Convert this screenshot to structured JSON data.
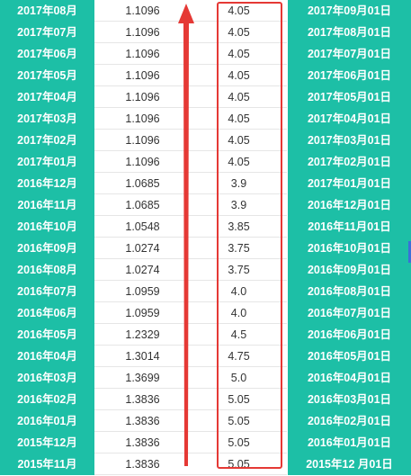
{
  "rows": [
    {
      "period": "2017年08月",
      "rate": "1.1096",
      "value": "4.05",
      "date": "2017年09月01日"
    },
    {
      "period": "2017年07月",
      "rate": "1.1096",
      "value": "4.05",
      "date": "2017年08月01日"
    },
    {
      "period": "2017年06月",
      "rate": "1.1096",
      "value": "4.05",
      "date": "2017年07月01日"
    },
    {
      "period": "2017年05月",
      "rate": "1.1096",
      "value": "4.05",
      "date": "2017年06月01日"
    },
    {
      "period": "2017年04月",
      "rate": "1.1096",
      "value": "4.05",
      "date": "2017年05月01日"
    },
    {
      "period": "2017年03月",
      "rate": "1.1096",
      "value": "4.05",
      "date": "2017年04月01日"
    },
    {
      "period": "2017年02月",
      "rate": "1.1096",
      "value": "4.05",
      "date": "2017年03月01日"
    },
    {
      "period": "2017年01月",
      "rate": "1.1096",
      "value": "4.05",
      "date": "2017年02月01日"
    },
    {
      "period": "2016年12月",
      "rate": "1.0685",
      "value": "3.9",
      "date": "2017年01月01日"
    },
    {
      "period": "2016年11月",
      "rate": "1.0685",
      "value": "3.9",
      "date": "2016年12月01日"
    },
    {
      "period": "2016年10月",
      "rate": "1.0548",
      "value": "3.85",
      "date": "2016年11月01日"
    },
    {
      "period": "2016年09月",
      "rate": "1.0274",
      "value": "3.75",
      "date": "2016年10月01日"
    },
    {
      "period": "2016年08月",
      "rate": "1.0274",
      "value": "3.75",
      "date": "2016年09月01日"
    },
    {
      "period": "2016年07月",
      "rate": "1.0959",
      "value": "4.0",
      "date": "2016年08月01日"
    },
    {
      "period": "2016年06月",
      "rate": "1.0959",
      "value": "4.0",
      "date": "2016年07月01日"
    },
    {
      "period": "2016年05月",
      "rate": "1.2329",
      "value": "4.5",
      "date": "2016年06月01日"
    },
    {
      "period": "2016年04月",
      "rate": "1.3014",
      "value": "4.75",
      "date": "2016年05月01日"
    },
    {
      "period": "2016年03月",
      "rate": "1.3699",
      "value": "5.0",
      "date": "2016年04月01日"
    },
    {
      "period": "2016年02月",
      "rate": "1.3836",
      "value": "5.05",
      "date": "2016年03月01日"
    },
    {
      "period": "2016年01月",
      "rate": "1.3836",
      "value": "5.05",
      "date": "2016年02月01日"
    },
    {
      "period": "2015年12月",
      "rate": "1.3836",
      "value": "5.05",
      "date": "2016年01月01日"
    },
    {
      "period": "2015年11月",
      "rate": "1.3836",
      "value": "5.05",
      "date": "2015年12 月01日"
    }
  ],
  "colors": {
    "header_teal": "#1dbfa6",
    "highlight_red": "#e53935",
    "text": "#333333"
  },
  "annotations": {
    "arrow_icon": "red-up-arrow",
    "box": "red-highlight-box"
  }
}
